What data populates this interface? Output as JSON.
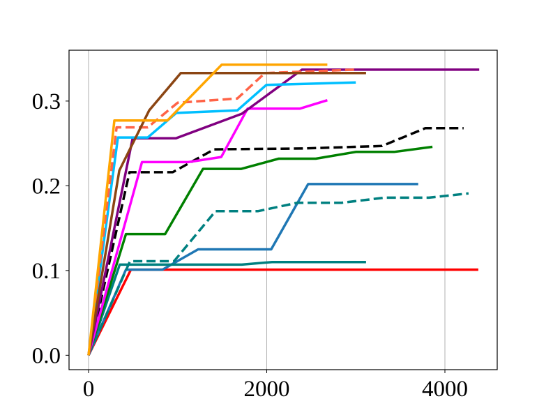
{
  "chart_data": {
    "type": "line",
    "title": "",
    "xlabel": "",
    "ylabel": "",
    "xlim": [
      -219,
      4587
    ],
    "ylim": [
      -0.017,
      0.36
    ],
    "xticks": [
      0,
      2000,
      4000
    ],
    "xtick_labels": [
      "0",
      "2000",
      "4000"
    ],
    "yticks": [
      0.0,
      0.1,
      0.2,
      0.3
    ],
    "ytick_labels": [
      "0.0",
      "0.1",
      "0.2",
      "0.3"
    ],
    "grid": "vertical lines at x ticks",
    "legend": "none",
    "series": [
      {
        "color": "#FF0000",
        "dash": false,
        "x": [
          0,
          475,
          4375
        ],
        "y": [
          0,
          0.101,
          0.101
        ]
      },
      {
        "color": "#1F77B4",
        "dash": false,
        "x": [
          0,
          420,
          830,
          1230,
          2050,
          2465,
          3700
        ],
        "y": [
          0,
          0.101,
          0.101,
          0.125,
          0.125,
          0.202,
          0.202
        ]
      },
      {
        "color": "#008080",
        "dash": false,
        "x": [
          0,
          350,
          1720,
          2060,
          3115
        ],
        "y": [
          0,
          0.107,
          0.107,
          0.11,
          0.11
        ]
      },
      {
        "color": "#008080",
        "dash": true,
        "x": [
          0,
          465,
          960,
          1425,
          1900,
          2345,
          2840,
          3325,
          3820,
          4265
        ],
        "y": [
          0,
          0.111,
          0.111,
          0.17,
          0.17,
          0.18,
          0.18,
          0.186,
          0.186,
          0.191
        ]
      },
      {
        "color": "#008000",
        "dash": false,
        "x": [
          0,
          420,
          860,
          1285,
          1715,
          2135,
          2550,
          3000,
          3430,
          3860
        ],
        "y": [
          0,
          0.143,
          0.143,
          0.22,
          0.22,
          0.232,
          0.232,
          0.24,
          0.24,
          0.246
        ]
      },
      {
        "color": "#000000",
        "dash": true,
        "x": [
          0,
          460,
          945,
          1410,
          2400,
          3295,
          3780,
          4210
        ],
        "y": [
          0,
          0.216,
          0.216,
          0.243,
          0.244,
          0.247,
          0.268,
          0.268
        ]
      },
      {
        "color": "#FF00FF",
        "dash": false,
        "x": [
          0,
          600,
          1120,
          1490,
          1785,
          2370,
          2680
        ],
        "y": [
          0,
          0.228,
          0.228,
          0.234,
          0.291,
          0.291,
          0.301
        ]
      },
      {
        "color": "#800080",
        "dash": false,
        "x": [
          0,
          495,
          980,
          1720,
          2395,
          4385
        ],
        "y": [
          0,
          0.256,
          0.256,
          0.285,
          0.337,
          0.337
        ]
      },
      {
        "color": "#00BFFF",
        "dash": false,
        "x": [
          0,
          330,
          665,
          985,
          1670,
          1995,
          3000
        ],
        "y": [
          0,
          0.257,
          0.257,
          0.286,
          0.289,
          0.319,
          0.322
        ]
      },
      {
        "color": "#FF6347",
        "dash": true,
        "x": [
          0,
          315,
          665,
          1000,
          1670,
          1980,
          2980
        ],
        "y": [
          0,
          0.269,
          0.269,
          0.298,
          0.303,
          0.333,
          0.337
        ]
      },
      {
        "color": "#8B4513",
        "dash": false,
        "x": [
          0,
          345,
          680,
          1035,
          3115
        ],
        "y": [
          0,
          0.218,
          0.289,
          0.333,
          0.333
        ]
      },
      {
        "color": "#FFA500",
        "dash": false,
        "x": [
          0,
          290,
          885,
          1495,
          2680
        ],
        "y": [
          0,
          0.277,
          0.277,
          0.343,
          0.343
        ]
      }
    ]
  }
}
